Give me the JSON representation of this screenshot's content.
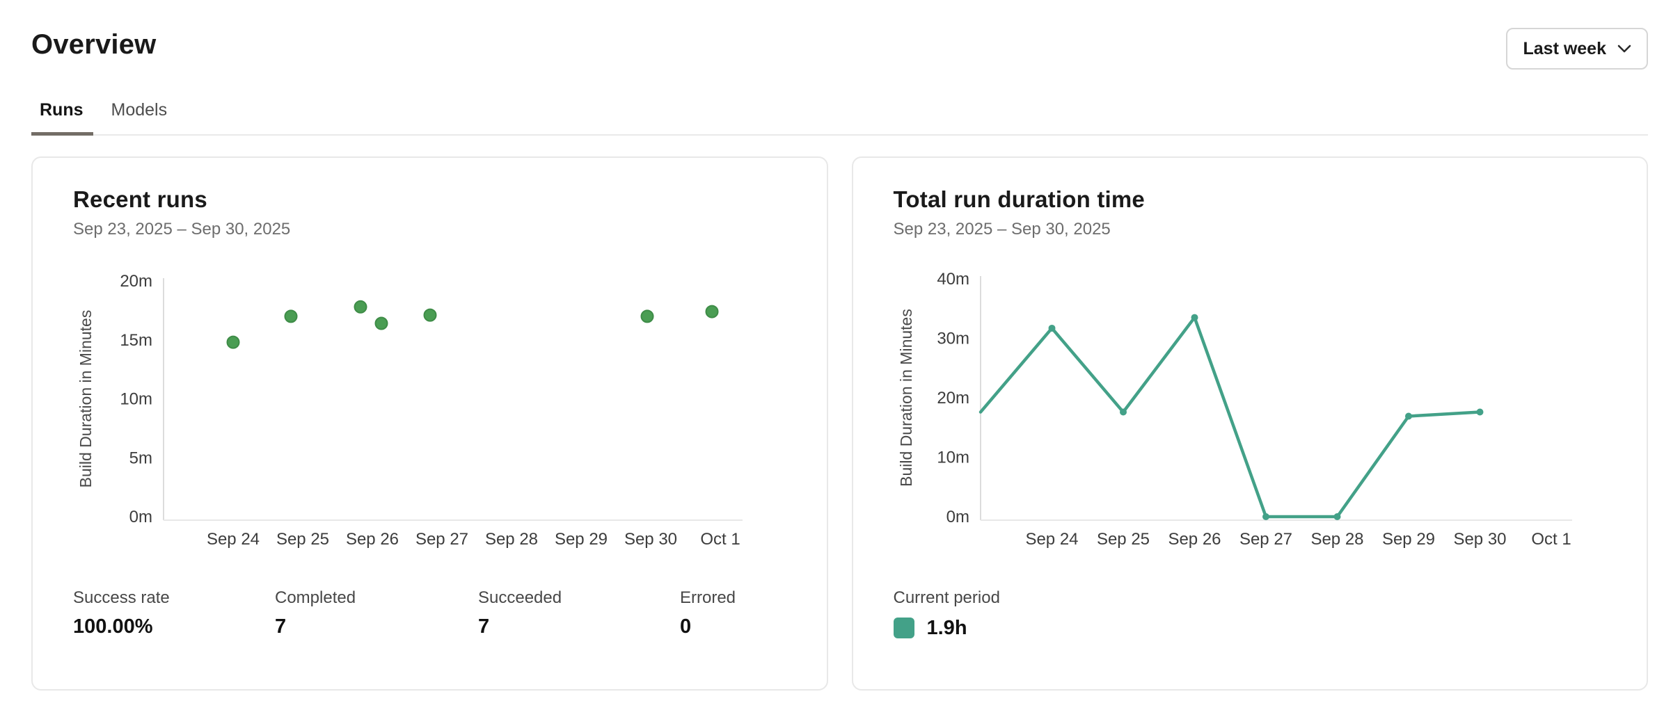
{
  "header": {
    "title": "Overview",
    "time_range": {
      "value": "Last week"
    }
  },
  "tabs": [
    {
      "label": "Runs",
      "active": true
    },
    {
      "label": "Models",
      "active": false
    }
  ],
  "cards": {
    "recent_runs": {
      "title": "Recent runs",
      "date_range": "Sep 23, 2025 – Sep 30, 2025",
      "stats": [
        {
          "label": "Success rate",
          "value": "100.00%"
        },
        {
          "label": "Completed",
          "value": "7"
        },
        {
          "label": "Succeeded",
          "value": "7"
        },
        {
          "label": "Errored",
          "value": "0"
        }
      ]
    },
    "total_run_duration": {
      "title": "Total run duration time",
      "date_range": "Sep 23, 2025 – Sep 30, 2025",
      "legend": {
        "label": "Current period",
        "value": "1.9h",
        "swatch_color": "#43a188"
      }
    }
  },
  "chart_data": [
    {
      "id": "recent-runs-scatter",
      "type": "scatter",
      "title": "Recent runs",
      "xlabel": "",
      "ylabel": "Build Duration in Minutes",
      "ylim": [
        0,
        20
      ],
      "grid": false,
      "y_ticks": [
        {
          "value": 0,
          "label": "0m"
        },
        {
          "value": 5,
          "label": "5m"
        },
        {
          "value": 10,
          "label": "10m"
        },
        {
          "value": 15,
          "label": "15m"
        },
        {
          "value": 20,
          "label": "20m"
        }
      ],
      "x_ticks": [
        "Sep 24",
        "Sep 25",
        "Sep 26",
        "Sep 27",
        "Sep 28",
        "Sep 29",
        "Sep 30",
        "Oct 1"
      ],
      "points": [
        {
          "date": "Sep 24",
          "day": 1,
          "offset": 0,
          "minutes": 14.8
        },
        {
          "date": "Sep 25",
          "day": 2,
          "offset": -0.17,
          "minutes": 17.0
        },
        {
          "date": "Sep 26",
          "day": 3,
          "offset": -0.17,
          "minutes": 17.8
        },
        {
          "date": "Sep 26",
          "day": 3,
          "offset": 0.13,
          "minutes": 16.4
        },
        {
          "date": "Sep 27",
          "day": 4,
          "offset": -0.17,
          "minutes": 17.1
        },
        {
          "date": "Sep 30",
          "day": 7,
          "offset": -0.05,
          "minutes": 17.0
        },
        {
          "date": "Oct 1",
          "day": 8,
          "offset": -0.12,
          "minutes": 17.4
        }
      ],
      "point_color": "#4a9d53",
      "point_stroke": "#3e8c47"
    },
    {
      "id": "total-duration-line",
      "type": "line",
      "title": "Total run duration time",
      "xlabel": "",
      "ylabel": "Build Duration in Minutes",
      "ylim": [
        0,
        40
      ],
      "grid": false,
      "legend_position": "bottom-left",
      "y_ticks": [
        {
          "value": 0,
          "label": "0m"
        },
        {
          "value": 10,
          "label": "10m"
        },
        {
          "value": 20,
          "label": "20m"
        },
        {
          "value": 30,
          "label": "30m"
        },
        {
          "value": 40,
          "label": "40m"
        }
      ],
      "x_ticks": [
        "Sep 24",
        "Sep 25",
        "Sep 26",
        "Sep 27",
        "Sep 28",
        "Sep 29",
        "Sep 30",
        "Oct 1"
      ],
      "points": [
        {
          "date": "Sep 23",
          "day": 0,
          "minutes": 17.6
        },
        {
          "date": "Sep 24",
          "day": 1,
          "minutes": 31.7
        },
        {
          "date": "Sep 25",
          "day": 2,
          "minutes": 17.6
        },
        {
          "date": "Sep 26",
          "day": 3,
          "minutes": 33.5
        },
        {
          "date": "Sep 27",
          "day": 4,
          "minutes": 0
        },
        {
          "date": "Sep 28",
          "day": 5,
          "minutes": 0
        },
        {
          "date": "Sep 29",
          "day": 6,
          "minutes": 16.9
        },
        {
          "date": "Sep 30",
          "day": 7,
          "minutes": 17.6
        }
      ],
      "line_color": "#43a188"
    }
  ]
}
